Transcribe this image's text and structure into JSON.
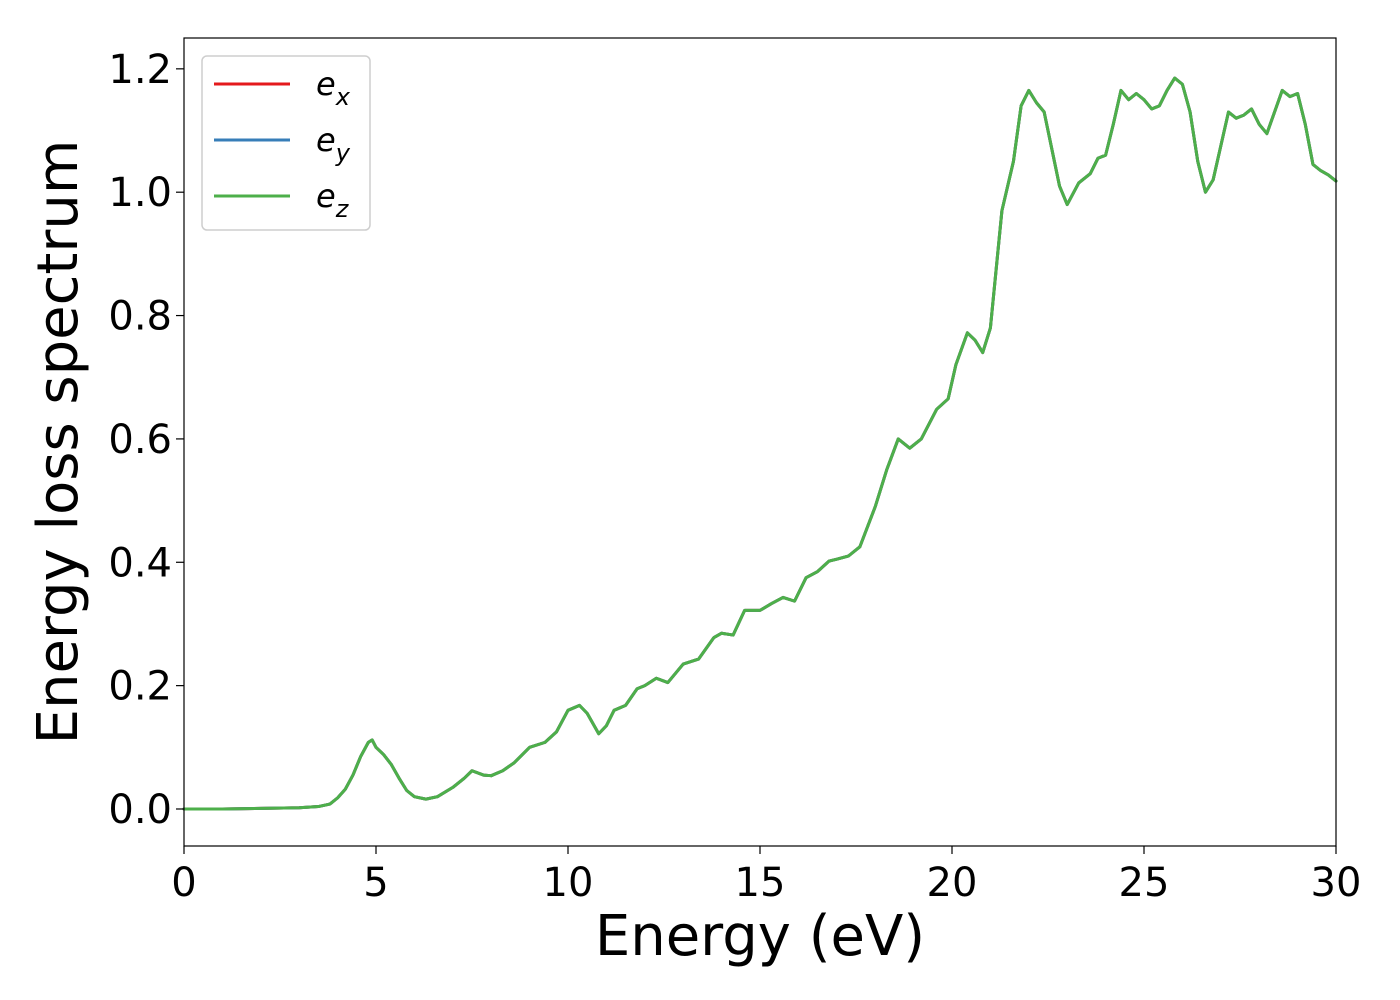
{
  "chart_data": {
    "type": "line",
    "xlabel": "Energy (eV)",
    "ylabel": "Energy loss spectrum",
    "xlim": [
      0,
      30
    ],
    "ylim": [
      -0.06,
      1.25
    ],
    "xticks": [
      "0",
      "5",
      "10",
      "15",
      "20",
      "25",
      "30"
    ],
    "yticks": [
      "0.0",
      "0.2",
      "0.4",
      "0.6",
      "0.8",
      "1.0",
      "1.2"
    ],
    "grid": false,
    "legend_position": "top-left",
    "legend": [
      {
        "base": "e",
        "sub": "x",
        "color": "#e41a1c"
      },
      {
        "base": "e",
        "sub": "y",
        "color": "#377eb8"
      },
      {
        "base": "e",
        "sub": "z",
        "color": "#4daf4a"
      }
    ],
    "x": [
      0,
      1,
      2,
      3,
      3.5,
      3.8,
      4.0,
      4.2,
      4.4,
      4.6,
      4.8,
      4.9,
      5.0,
      5.2,
      5.4,
      5.6,
      5.8,
      6.0,
      6.3,
      6.6,
      7.0,
      7.3,
      7.5,
      7.8,
      8.0,
      8.3,
      8.6,
      9.0,
      9.4,
      9.7,
      10.0,
      10.3,
      10.5,
      10.8,
      11.0,
      11.2,
      11.5,
      11.8,
      12.0,
      12.3,
      12.6,
      13.0,
      13.4,
      13.8,
      14.0,
      14.3,
      14.6,
      15.0,
      15.3,
      15.6,
      15.9,
      16.2,
      16.5,
      16.8,
      17.0,
      17.3,
      17.6,
      18.0,
      18.3,
      18.6,
      18.9,
      19.2,
      19.6,
      19.9,
      20.1,
      20.4,
      20.6,
      20.8,
      21.0,
      21.3,
      21.6,
      21.8,
      22.0,
      22.2,
      22.4,
      22.6,
      22.8,
      23.0,
      23.3,
      23.6,
      23.8,
      24.0,
      24.2,
      24.4,
      24.6,
      24.8,
      25.0,
      25.2,
      25.4,
      25.6,
      25.8,
      26.0,
      26.2,
      26.4,
      26.6,
      26.8,
      27.0,
      27.2,
      27.4,
      27.6,
      27.8,
      28.0,
      28.2,
      28.4,
      28.6,
      28.8,
      29.0,
      29.2,
      29.4,
      29.6,
      29.8,
      30.0
    ],
    "series": [
      {
        "name": "e_x",
        "color": "#e41a1c",
        "values": [
          0.0,
          0.0,
          0.001,
          0.002,
          0.004,
          0.008,
          0.018,
          0.032,
          0.055,
          0.085,
          0.108,
          0.112,
          0.1,
          0.088,
          0.072,
          0.05,
          0.03,
          0.02,
          0.016,
          0.02,
          0.035,
          0.05,
          0.062,
          0.055,
          0.054,
          0.062,
          0.075,
          0.1,
          0.108,
          0.125,
          0.16,
          0.168,
          0.155,
          0.122,
          0.135,
          0.16,
          0.168,
          0.195,
          0.2,
          0.212,
          0.205,
          0.235,
          0.243,
          0.278,
          0.285,
          0.282,
          0.322,
          0.322,
          0.333,
          0.343,
          0.337,
          0.375,
          0.385,
          0.402,
          0.405,
          0.41,
          0.425,
          0.49,
          0.55,
          0.6,
          0.585,
          0.6,
          0.648,
          0.665,
          0.72,
          0.772,
          0.76,
          0.74,
          0.78,
          0.97,
          1.05,
          1.14,
          1.165,
          1.145,
          1.13,
          1.07,
          1.01,
          0.98,
          1.015,
          1.03,
          1.055,
          1.06,
          1.11,
          1.165,
          1.15,
          1.16,
          1.15,
          1.135,
          1.14,
          1.165,
          1.185,
          1.175,
          1.13,
          1.05,
          1.0,
          1.02,
          1.075,
          1.13,
          1.12,
          1.125,
          1.135,
          1.11,
          1.095,
          1.13,
          1.165,
          1.155,
          1.16,
          1.11,
          1.045,
          1.035,
          1.028,
          1.018
        ]
      },
      {
        "name": "e_y",
        "color": "#377eb8",
        "values": [
          0.0,
          0.0,
          0.001,
          0.002,
          0.004,
          0.008,
          0.018,
          0.032,
          0.055,
          0.085,
          0.108,
          0.112,
          0.1,
          0.088,
          0.072,
          0.05,
          0.03,
          0.02,
          0.016,
          0.02,
          0.035,
          0.05,
          0.062,
          0.055,
          0.054,
          0.062,
          0.075,
          0.1,
          0.108,
          0.125,
          0.16,
          0.168,
          0.155,
          0.122,
          0.135,
          0.16,
          0.168,
          0.195,
          0.2,
          0.212,
          0.205,
          0.235,
          0.243,
          0.278,
          0.285,
          0.282,
          0.322,
          0.322,
          0.333,
          0.343,
          0.337,
          0.375,
          0.385,
          0.402,
          0.405,
          0.41,
          0.425,
          0.49,
          0.55,
          0.6,
          0.585,
          0.6,
          0.648,
          0.665,
          0.72,
          0.772,
          0.76,
          0.74,
          0.78,
          0.97,
          1.05,
          1.14,
          1.165,
          1.145,
          1.13,
          1.07,
          1.01,
          0.98,
          1.015,
          1.03,
          1.055,
          1.06,
          1.11,
          1.165,
          1.15,
          1.16,
          1.15,
          1.135,
          1.14,
          1.165,
          1.185,
          1.175,
          1.13,
          1.05,
          1.0,
          1.02,
          1.075,
          1.13,
          1.12,
          1.125,
          1.135,
          1.11,
          1.095,
          1.13,
          1.165,
          1.155,
          1.16,
          1.11,
          1.045,
          1.035,
          1.028,
          1.018
        ]
      },
      {
        "name": "e_z",
        "color": "#4daf4a",
        "values": [
          0.0,
          0.0,
          0.001,
          0.002,
          0.004,
          0.008,
          0.018,
          0.032,
          0.055,
          0.085,
          0.108,
          0.112,
          0.1,
          0.088,
          0.072,
          0.05,
          0.03,
          0.02,
          0.016,
          0.02,
          0.035,
          0.05,
          0.062,
          0.055,
          0.054,
          0.062,
          0.075,
          0.1,
          0.108,
          0.125,
          0.16,
          0.168,
          0.155,
          0.122,
          0.135,
          0.16,
          0.168,
          0.195,
          0.2,
          0.212,
          0.205,
          0.235,
          0.243,
          0.278,
          0.285,
          0.282,
          0.322,
          0.322,
          0.333,
          0.343,
          0.337,
          0.375,
          0.385,
          0.402,
          0.405,
          0.41,
          0.425,
          0.49,
          0.55,
          0.6,
          0.585,
          0.6,
          0.648,
          0.665,
          0.72,
          0.772,
          0.76,
          0.74,
          0.78,
          0.97,
          1.05,
          1.14,
          1.165,
          1.145,
          1.13,
          1.07,
          1.01,
          0.98,
          1.015,
          1.03,
          1.055,
          1.06,
          1.11,
          1.165,
          1.15,
          1.16,
          1.15,
          1.135,
          1.14,
          1.165,
          1.185,
          1.175,
          1.13,
          1.05,
          1.0,
          1.02,
          1.075,
          1.13,
          1.12,
          1.125,
          1.135,
          1.11,
          1.095,
          1.13,
          1.165,
          1.155,
          1.16,
          1.11,
          1.045,
          1.035,
          1.028,
          1.018
        ]
      }
    ]
  }
}
